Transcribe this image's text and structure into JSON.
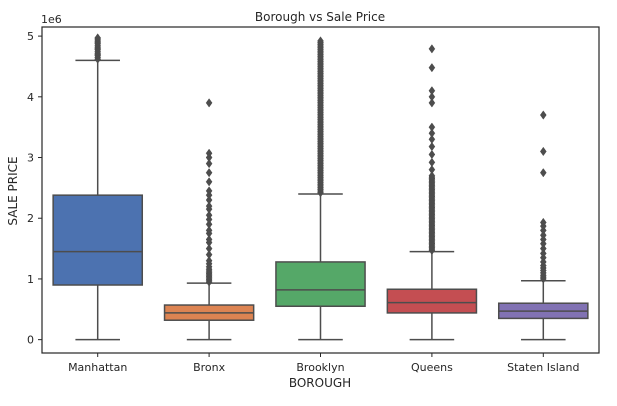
{
  "chart_data": {
    "type": "box",
    "title": "Borough vs Sale Price",
    "xlabel": "BOROUGH",
    "ylabel": "SALE PRICE",
    "y_offset_label": "1e6",
    "ylim": [
      -0.22,
      5.15
    ],
    "yticks": [
      0,
      1,
      2,
      3,
      4,
      5
    ],
    "grid": false,
    "legend": "none",
    "categories": [
      "Manhattan",
      "Bronx",
      "Brooklyn",
      "Queens",
      "Staten Island"
    ],
    "colors": [
      "#4c72b0",
      "#dd8452",
      "#55a868",
      "#c44e52",
      "#8172b3"
    ],
    "boxes": [
      {
        "category": "Manhattan",
        "whisker_low": 0.0,
        "q1": 0.9,
        "median": 1.45,
        "q3": 2.38,
        "whisker_high": 4.6,
        "outliers": [
          4.62,
          4.65,
          4.68,
          4.7,
          4.72,
          4.75,
          4.78,
          4.8,
          4.82,
          4.85,
          4.88,
          4.9,
          4.92,
          4.95,
          4.97
        ]
      },
      {
        "category": "Bronx",
        "whisker_low": 0.0,
        "q1": 0.32,
        "median": 0.44,
        "q3": 0.57,
        "whisker_high": 0.93,
        "outliers": [
          0.95,
          0.98,
          1.0,
          1.03,
          1.05,
          1.08,
          1.1,
          1.13,
          1.16,
          1.2,
          1.25,
          1.3,
          1.4,
          1.5,
          1.6,
          1.65,
          1.75,
          1.8,
          1.9,
          1.98,
          2.05,
          2.15,
          2.2,
          2.3,
          2.38,
          2.45,
          2.6,
          2.75,
          2.9,
          3.0,
          3.07,
          3.9
        ]
      },
      {
        "category": "Brooklyn",
        "whisker_low": 0.0,
        "q1": 0.55,
        "median": 0.82,
        "q3": 1.28,
        "whisker_high": 2.4,
        "outliers_dense_range": [
          2.42,
          4.92
        ],
        "outliers_dense_count": 90
      },
      {
        "category": "Queens",
        "whisker_low": 0.0,
        "q1": 0.44,
        "median": 0.61,
        "q3": 0.83,
        "whisker_high": 1.45,
        "outliers_dense_range": [
          1.47,
          2.7
        ],
        "outliers_dense_count": 55,
        "outliers": [
          2.8,
          2.92,
          3.05,
          3.18,
          3.3,
          3.4,
          3.5,
          3.9,
          4.0,
          4.1,
          4.48,
          4.79
        ]
      },
      {
        "category": "Staten Island",
        "whisker_low": 0.0,
        "q1": 0.35,
        "median": 0.47,
        "q3": 0.6,
        "whisker_high": 0.97,
        "outliers": [
          1.0,
          1.03,
          1.06,
          1.1,
          1.14,
          1.18,
          1.22,
          1.28,
          1.35,
          1.42,
          1.5,
          1.58,
          1.65,
          1.72,
          1.8,
          1.87,
          1.93,
          2.75,
          3.1,
          3.7
        ]
      }
    ]
  }
}
